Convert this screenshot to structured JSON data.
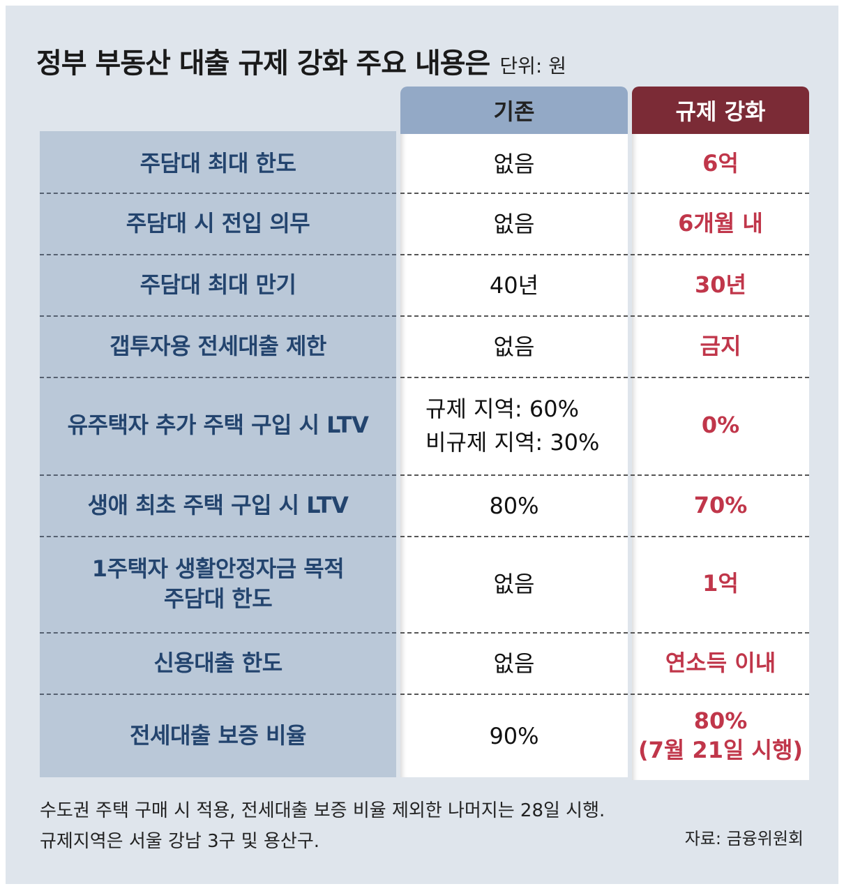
{
  "title": "정부 부동산 대출 규제 강화 주요 내용은",
  "unit": "단위: 원",
  "headers": {
    "old": "기존",
    "new": "규제 강화"
  },
  "rows": [
    {
      "label": "주담대 최대 한도",
      "old": "없음",
      "new": "6억"
    },
    {
      "label": "주담대 시 전입 의무",
      "old": "없음",
      "new": "6개월 내"
    },
    {
      "label": "주담대 최대 만기",
      "old": "40년",
      "new": "30년"
    },
    {
      "label": "갭투자용 전세대출 제한",
      "old": "없음",
      "new": "금지"
    },
    {
      "label": "유주택자 추가 주택 구입 시 LTV",
      "old_line1": "규제 지역: 60%",
      "old_line2": "비규제 지역: 30%",
      "new": "0%"
    },
    {
      "label": "생애 최초 주택 구입 시 LTV",
      "old": "80%",
      "new": "70%"
    },
    {
      "label_line1": "1주택자 생활안정자금 목적",
      "label_line2": "주담대 한도",
      "old": "없음",
      "new": "1억"
    },
    {
      "label": "신용대출 한도",
      "old": "없음",
      "new": "연소득 이내"
    },
    {
      "label": "전세대출 보증 비율",
      "old": "90%",
      "new_line1": "80%",
      "new_line2": "(7월 21일 시행)"
    }
  ],
  "footnote": {
    "line1": "수도권 주택 구매 시 적용, 전세대출 보증 비율 제외한 나머지는 28일 시행.",
    "line2": "규제지역은 서울 강남 3구 및 용산구."
  },
  "source": "자료: 금융위원회"
}
